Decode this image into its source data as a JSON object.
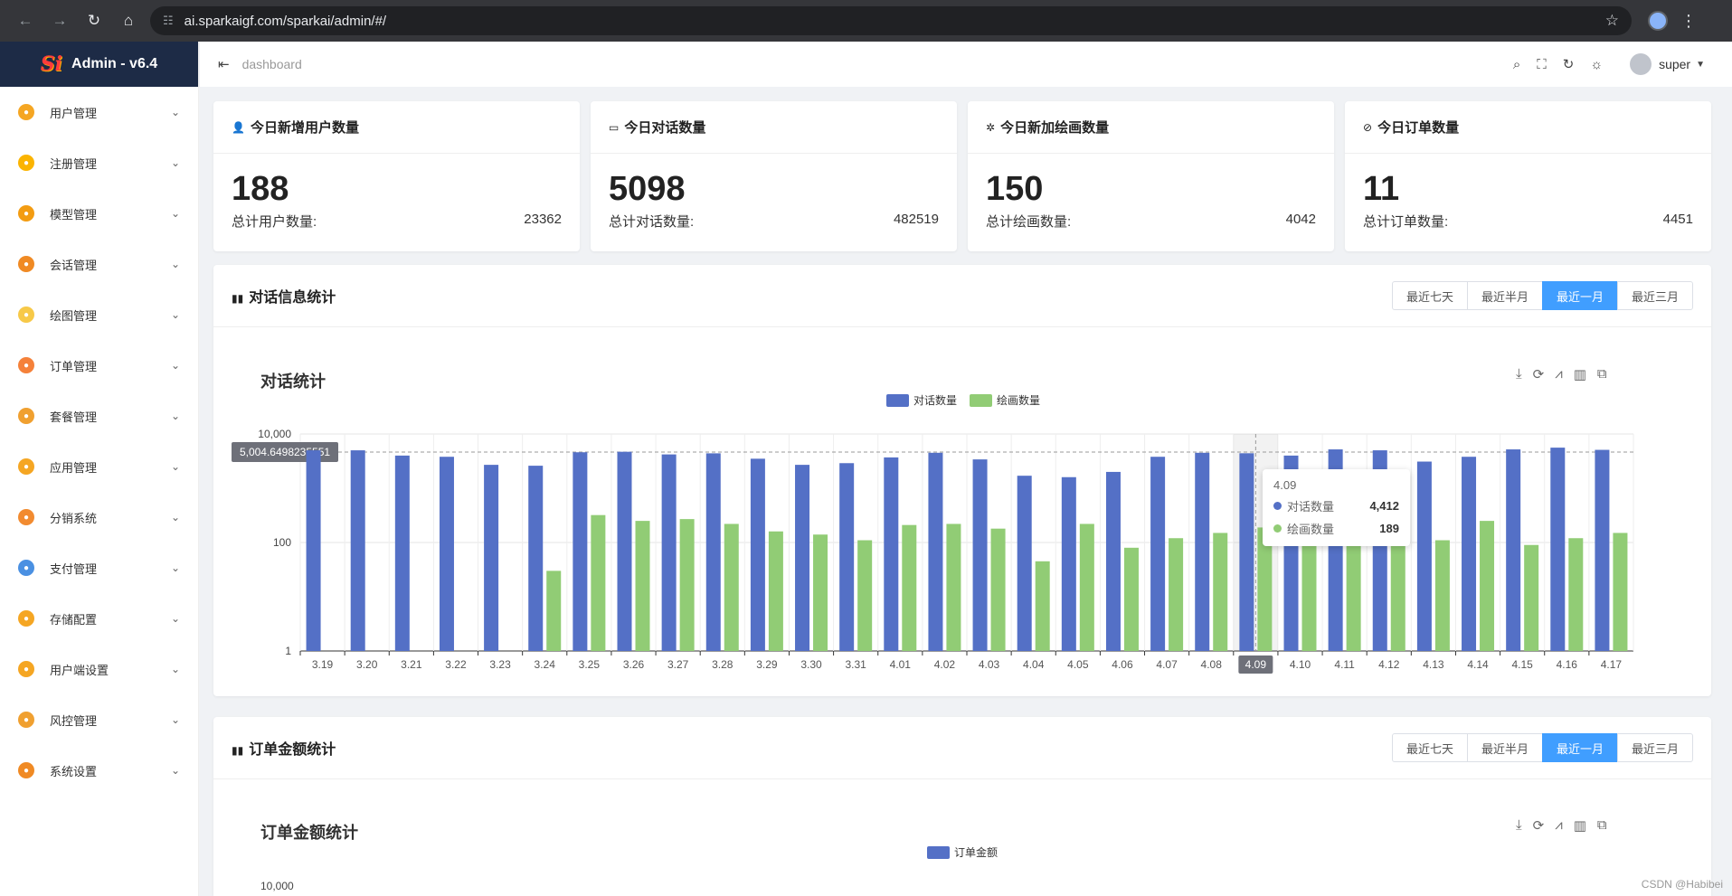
{
  "browser": {
    "url": "ai.sparkaigf.com/sparkai/admin/#/"
  },
  "sidebar": {
    "logo": "Admin - v6.4",
    "items": [
      {
        "label": "用户管理",
        "color": "#f5a623"
      },
      {
        "label": "注册管理",
        "color": "#fbb400"
      },
      {
        "label": "模型管理",
        "color": "#f39c12"
      },
      {
        "label": "会话管理",
        "color": "#f08a24"
      },
      {
        "label": "绘图管理",
        "color": "#f7c948"
      },
      {
        "label": "订单管理",
        "color": "#f5813a"
      },
      {
        "label": "套餐管理",
        "color": "#f0a030"
      },
      {
        "label": "应用管理",
        "color": "#f5a623"
      },
      {
        "label": "分销系统",
        "color": "#f28b30"
      },
      {
        "label": "支付管理",
        "color": "#4a90e2"
      },
      {
        "label": "存储配置",
        "color": "#f5a623"
      },
      {
        "label": "用户端设置",
        "color": "#f5a623"
      },
      {
        "label": "风控管理",
        "color": "#f0a030"
      },
      {
        "label": "系统设置",
        "color": "#f08a24"
      }
    ]
  },
  "header": {
    "breadcrumb": "dashboard",
    "user": "super"
  },
  "cards": [
    {
      "title": "今日新增用户数量",
      "value": "188",
      "footer_label": "总计用户数量:",
      "footer_value": "23362"
    },
    {
      "title": "今日对话数量",
      "value": "5098",
      "footer_label": "总计对话数量:",
      "footer_value": "482519"
    },
    {
      "title": "今日新加绘画数量",
      "value": "150",
      "footer_label": "总计绘画数量:",
      "footer_value": "4042"
    },
    {
      "title": "今日订单数量",
      "value": "11",
      "footer_label": "总计订单数量:",
      "footer_value": "4451"
    }
  ],
  "range_buttons": [
    "最近七天",
    "最近半月",
    "最近一月",
    "最近三月"
  ],
  "active_range": 2,
  "panels": {
    "chat": {
      "title": "对话信息统计",
      "chart_title": "对话统计"
    },
    "orders": {
      "title": "订单金额统计",
      "chart_title": "订单金额统计"
    }
  },
  "chart_data": [
    {
      "type": "bar",
      "title": "对话统计",
      "yscale": "log",
      "ylim": [
        1,
        10000
      ],
      "yticks": [
        "10,000",
        "100",
        "1"
      ],
      "categories": [
        "3.19",
        "3.20",
        "3.21",
        "3.22",
        "3.23",
        "3.24",
        "3.25",
        "3.26",
        "3.27",
        "3.28",
        "3.29",
        "3.30",
        "3.31",
        "4.01",
        "4.02",
        "4.03",
        "4.04",
        "4.05",
        "4.06",
        "4.07",
        "4.08",
        "4.09",
        "4.10",
        "4.11",
        "4.12",
        "4.13",
        "4.14",
        "4.15",
        "4.16",
        "4.17"
      ],
      "series": [
        {
          "name": "对话数量",
          "color": "#5470c6",
          "values": [
            5000,
            5000,
            4000,
            3800,
            2700,
            2600,
            4600,
            4700,
            4200,
            4400,
            3500,
            2700,
            2900,
            3700,
            4500,
            3400,
            1700,
            1600,
            2000,
            3800,
            4500,
            4412,
            4000,
            5200,
            5000,
            3100,
            3800,
            5200,
            5600,
            5100
          ]
        },
        {
          "name": "绘画数量",
          "color": "#91cc75",
          "values": [
            0,
            0,
            0,
            0,
            0,
            30,
            320,
            250,
            270,
            220,
            160,
            140,
            110,
            210,
            220,
            180,
            45,
            220,
            80,
            120,
            150,
            189,
            130,
            140,
            100,
            110,
            250,
            90,
            120,
            150
          ]
        }
      ],
      "legend": "top-center",
      "crosshair_label": "5,004.6498235551",
      "tooltip": {
        "category": "4.09",
        "rows": [
          {
            "name": "对话数量",
            "value": "4,412"
          },
          {
            "name": "绘画数量",
            "value": "189"
          }
        ]
      }
    },
    {
      "type": "bar",
      "title": "订单金额统计",
      "yscale": "log",
      "ylim": [
        1,
        10000
      ],
      "yticks": [
        "10,000"
      ],
      "series": [
        {
          "name": "订单金额",
          "color": "#5470c6",
          "values": []
        }
      ],
      "legend": "top-center"
    }
  ],
  "watermark": "CSDN @Habibei"
}
